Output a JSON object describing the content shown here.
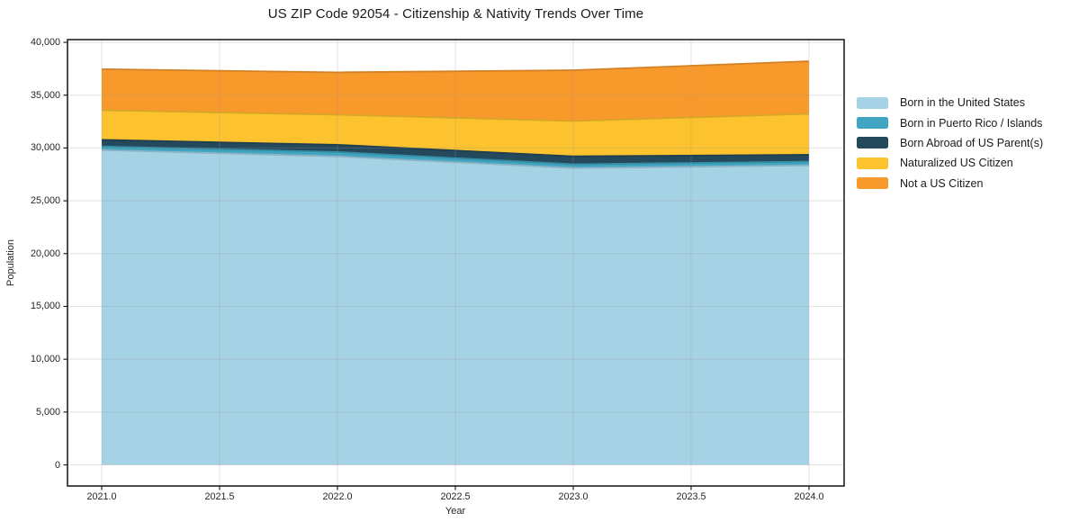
{
  "page": {
    "background": "#ffffff"
  },
  "chart_data": {
    "type": "area",
    "stacked": true,
    "title": "US ZIP Code 92054 - Citizenship & Nativity Trends Over Time",
    "xlabel": "Year",
    "ylabel": "Population",
    "x": [
      2021,
      2022,
      2023,
      2024
    ],
    "series": [
      {
        "name": "Born in the United States",
        "color": "#a6d2e6",
        "values": [
          29800,
          29200,
          28100,
          28350
        ]
      },
      {
        "name": "Born in Puerto Rico / Islands",
        "color": "#3fa5c0",
        "values": [
          350,
          420,
          360,
          360
        ]
      },
      {
        "name": "Born Abroad of US Parent(s)",
        "color": "#25495c",
        "values": [
          620,
          680,
          750,
          650
        ]
      },
      {
        "name": "Naturalized US Citizen",
        "color": "#fdc32e",
        "values": [
          2800,
          2850,
          3340,
          3870
        ]
      },
      {
        "name": "Not a US Citizen",
        "color": "#f8992b",
        "values": [
          3890,
          4010,
          4810,
          4980
        ]
      }
    ],
    "totals": [
      37460,
      37160,
      37360,
      38210
    ],
    "xticks": [
      2021.0,
      2021.5,
      2022.0,
      2022.5,
      2023.0,
      2023.5,
      2024.0
    ],
    "yticks": [
      0,
      5000,
      10000,
      15000,
      20000,
      25000,
      30000,
      35000,
      40000
    ],
    "xlim": [
      2020.855,
      2024.149
    ],
    "ylim": [
      -2000,
      40260
    ],
    "grid": true,
    "grid_color": "rgba(150,150,150,0.28)",
    "frame_color": "#222222",
    "legend_position": "right-outside"
  }
}
